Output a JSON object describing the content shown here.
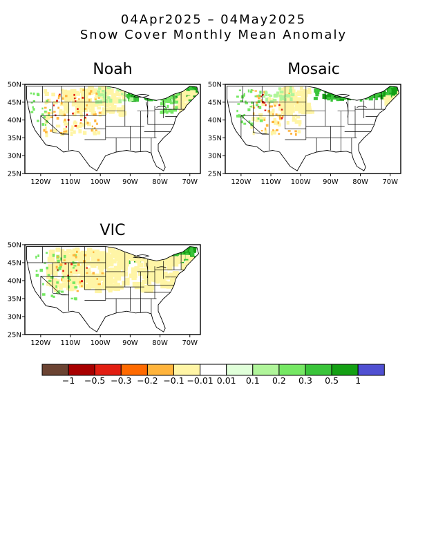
{
  "title_line1": "04Apr2025 – 04May2025",
  "title_line2": "Snow Cover Monthly Mean Anomaly",
  "lat_labels": [
    "50N",
    "45N",
    "40N",
    "35N",
    "30N",
    "25N"
  ],
  "lon_labels": [
    "120W",
    "110W",
    "100W",
    "90W",
    "80W",
    "70W"
  ],
  "panels": [
    {
      "name": "Noah"
    },
    {
      "name": "Mosaic"
    },
    {
      "name": "VIC"
    }
  ],
  "colorbar": {
    "colors": [
      "#6b4332",
      "#a80000",
      "#e21e12",
      "#ff6a00",
      "#ffb43c",
      "#fff5a6",
      "#ffffff",
      "#e0ffd9",
      "#b0f59a",
      "#76e864",
      "#3ac43a",
      "#14a014",
      "#5050d2"
    ],
    "labels": [
      "−1",
      "−0.5",
      "−0.3",
      "−0.2",
      "−0.1",
      "−0.01",
      "0.01",
      "0.1",
      "0.2",
      "0.3",
      "0.5",
      "1"
    ]
  },
  "colors": {
    "yellow": "#fff5a6",
    "orange": "#ffb43c",
    "red": "#e21e12",
    "dark_green": "#14a014",
    "green": "#3ac43a",
    "light_green": "#76e864",
    "pale_green": "#b0f59a"
  }
}
